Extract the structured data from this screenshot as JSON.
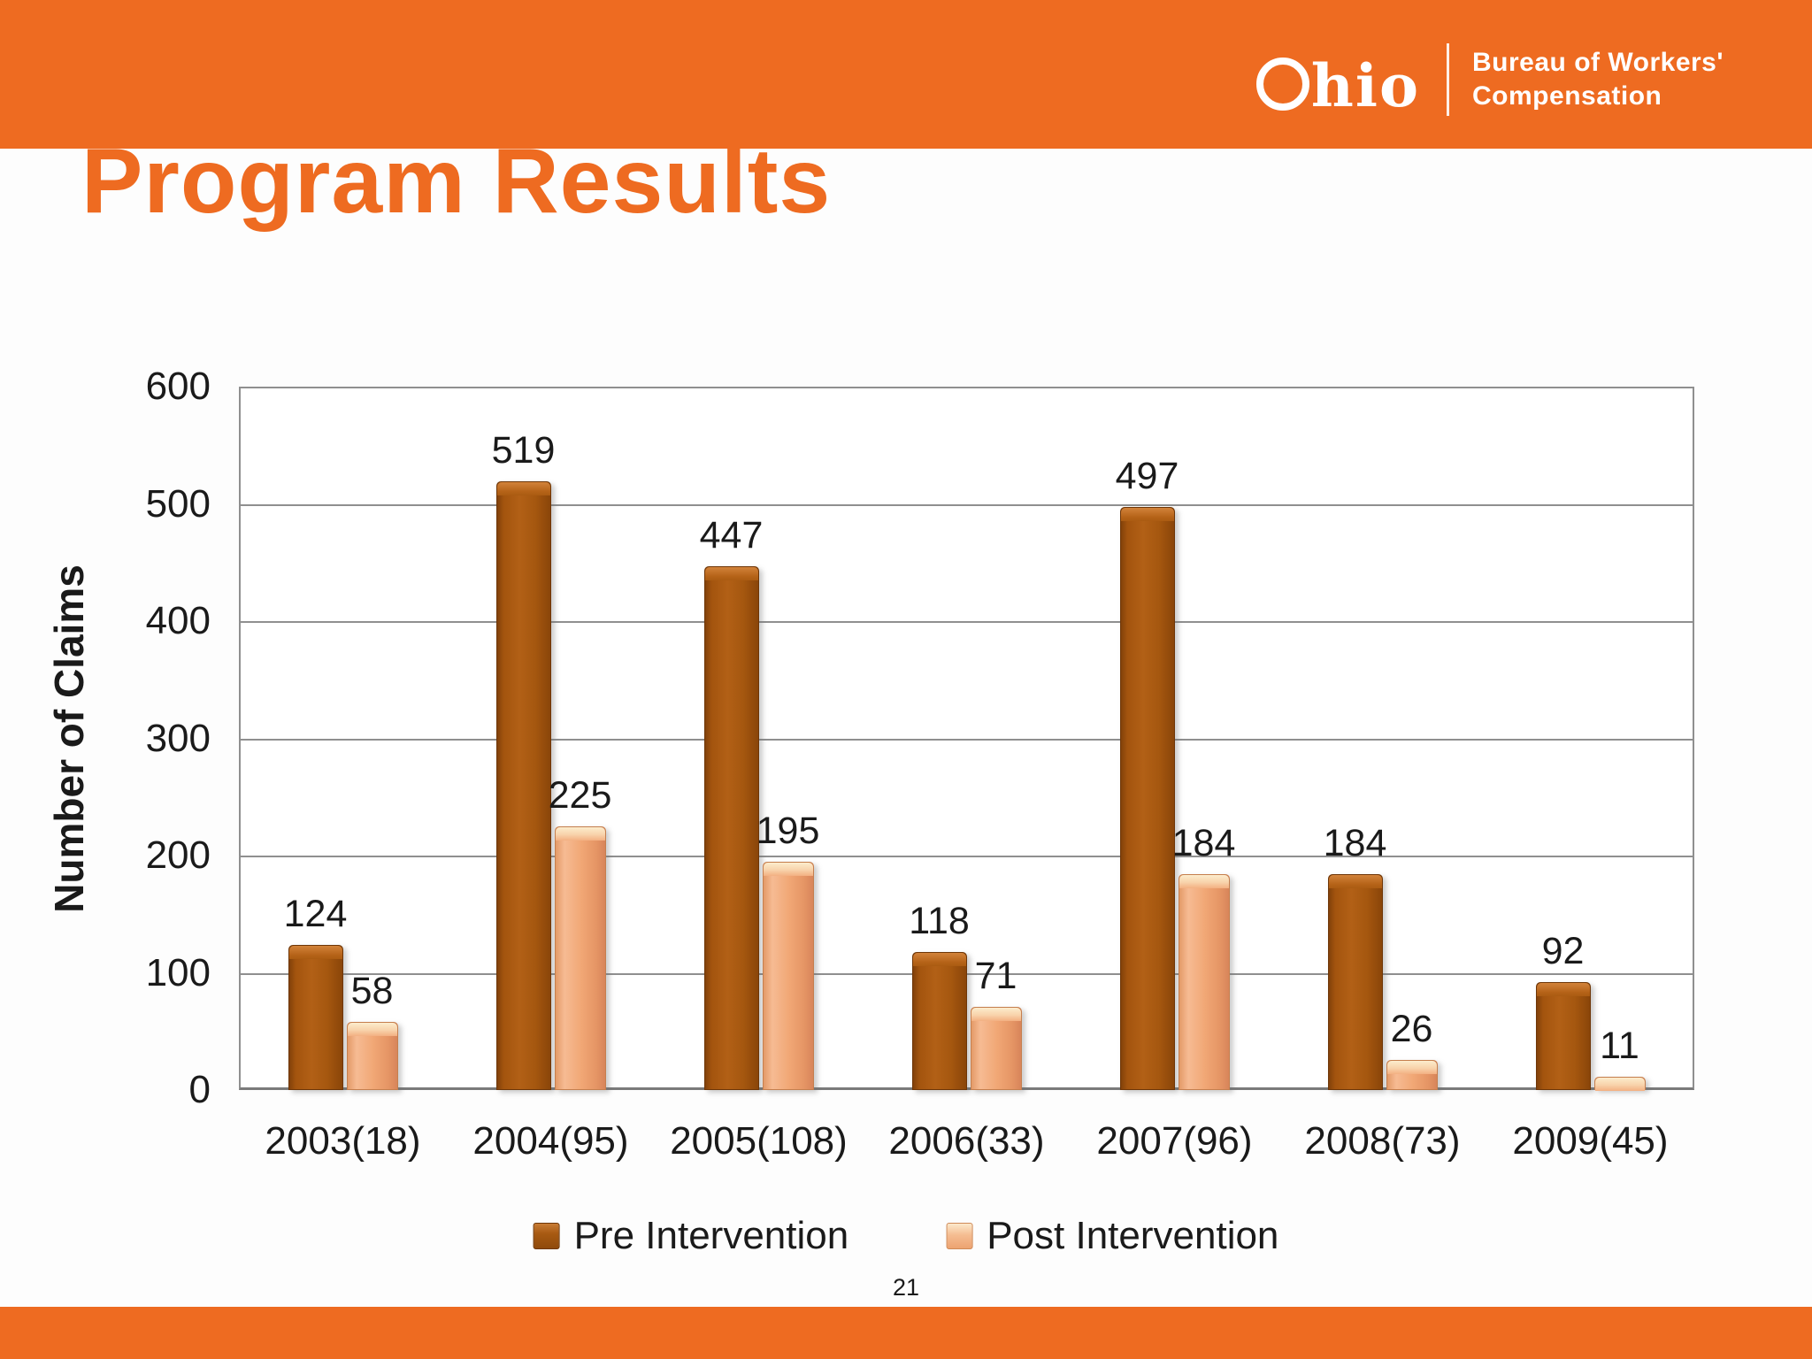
{
  "header": {
    "logo": {
      "wordmark_rest": "hio",
      "org_line1": "Bureau of Workers'",
      "org_line2": "Compensation"
    }
  },
  "slide": {
    "title": "Program Results",
    "page_number": "21"
  },
  "chart_data": {
    "type": "bar",
    "title": "",
    "categories": [
      "2003(18)",
      "2004(95)",
      "2005(108)",
      "2006(33)",
      "2007(96)",
      "2008(73)",
      "2009(45)"
    ],
    "series": [
      {
        "name": "Pre Intervention",
        "color": "#A5560F",
        "values": [
          124,
          519,
          447,
          118,
          497,
          184,
          92
        ]
      },
      {
        "name": "Post Intervention",
        "color": "#F0A26E",
        "values": [
          58,
          225,
          195,
          71,
          184,
          26,
          11
        ]
      }
    ],
    "xlabel": "",
    "ylabel": "Number of Claims",
    "ylim": [
      0,
      600
    ],
    "yticks": [
      0,
      100,
      200,
      300,
      400,
      500,
      600
    ],
    "grid": "horizontal",
    "legend_position": "bottom"
  },
  "colors": {
    "accent_orange": "#EE6B21",
    "grid_line": "#8F8F8F",
    "text": "#1A1A1A",
    "background": "#FDFDFD"
  }
}
